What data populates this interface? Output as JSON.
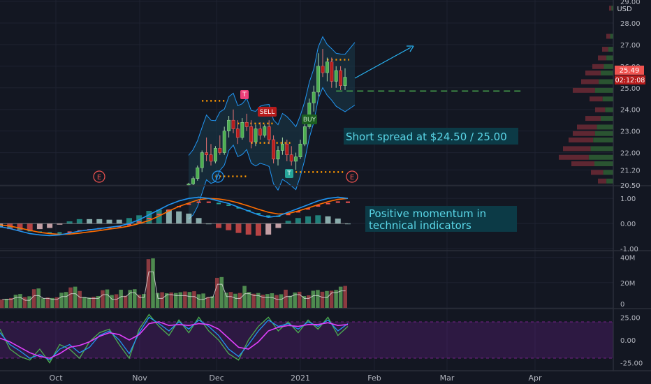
{
  "chart_data": {
    "type": "candlestick",
    "currency": "USD",
    "x_labels": [
      "Oct",
      "Nov",
      "Dec",
      "2021",
      "Feb",
      "Mar",
      "Apr"
    ],
    "price_panel": {
      "ylim": [
        20.5,
        29.0
      ],
      "ticks": [
        "29.00",
        "28.00",
        "27.00",
        "26.00",
        "25.00",
        "24.00",
        "23.00",
        "22.00",
        "21.20",
        "20.50"
      ],
      "last_price": "25.49",
      "countdown": "02:12:08",
      "support_level": 24.85,
      "resistance_levels": [
        24.85,
        26.3
      ],
      "level_lines": [
        24.4,
        23.35,
        22.45,
        20.9,
        21.1,
        26.3
      ],
      "series_candles": [
        [
          20.5,
          20.6,
          20.45,
          20.55
        ],
        [
          20.55,
          20.9,
          20.5,
          20.8
        ],
        [
          20.8,
          21.4,
          20.7,
          21.3
        ],
        [
          21.3,
          22.1,
          21.1,
          22.0
        ],
        [
          22.0,
          22.7,
          21.6,
          21.9
        ],
        [
          21.9,
          22.4,
          21.4,
          21.6
        ],
        [
          21.6,
          22.3,
          21.5,
          22.2
        ],
        [
          22.2,
          22.8,
          21.9,
          22.0
        ],
        [
          22.0,
          23.2,
          21.9,
          23.0
        ],
        [
          23.0,
          23.7,
          22.7,
          23.5
        ],
        [
          23.5,
          24.0,
          22.9,
          23.1
        ],
        [
          23.1,
          23.5,
          22.4,
          22.7
        ],
        [
          22.7,
          23.6,
          22.6,
          23.4
        ],
        [
          23.4,
          23.8,
          23.0,
          23.2
        ],
        [
          23.2,
          23.5,
          22.2,
          22.5
        ],
        [
          22.5,
          23.3,
          22.3,
          23.1
        ],
        [
          23.1,
          23.4,
          22.6,
          22.8
        ],
        [
          22.8,
          23.3,
          22.7,
          23.2
        ],
        [
          23.2,
          23.5,
          22.4,
          22.6
        ],
        [
          22.6,
          22.8,
          21.5,
          21.7
        ],
        [
          21.7,
          22.3,
          21.4,
          22.1
        ],
        [
          22.1,
          22.7,
          21.9,
          22.4
        ],
        [
          22.4,
          22.6,
          21.6,
          21.9
        ],
        [
          21.9,
          22.3,
          21.4,
          21.6
        ],
        [
          21.6,
          22.0,
          21.2,
          21.8
        ],
        [
          21.8,
          22.6,
          21.7,
          22.4
        ],
        [
          22.4,
          23.4,
          22.3,
          23.2
        ],
        [
          23.2,
          24.5,
          23.1,
          24.3
        ],
        [
          24.3,
          25.1,
          23.9,
          24.8
        ],
        [
          24.8,
          26.6,
          24.6,
          26.0
        ],
        [
          26.0,
          26.8,
          25.5,
          25.7
        ],
        [
          25.7,
          26.4,
          25.3,
          26.2
        ],
        [
          26.2,
          26.4,
          25.0,
          25.3
        ],
        [
          25.3,
          26.0,
          25.0,
          25.8
        ],
        [
          25.8,
          26.0,
          24.9,
          25.1
        ],
        [
          25.1,
          25.9,
          24.9,
          25.49
        ]
      ],
      "annotation": "Short spread at $24.50 / 25.00",
      "signals": [
        {
          "label": "SELL",
          "kind": "sell"
        },
        {
          "label": "BUY",
          "kind": "buy"
        },
        {
          "label": "T",
          "kind": "tag-red"
        },
        {
          "label": "T",
          "kind": "tag-green"
        },
        {
          "label": "D",
          "kind": "dividend"
        },
        {
          "label": "E",
          "kind": "earnings"
        },
        {
          "label": "E",
          "kind": "earnings"
        }
      ]
    },
    "macd_panel": {
      "ticks": [
        "1.00",
        "0.00",
        "-1.00"
      ],
      "ylim": [
        -1.05,
        1.45
      ],
      "macd": [
        -0.12,
        -0.2,
        -0.3,
        -0.4,
        -0.45,
        -0.48,
        -0.45,
        -0.38,
        -0.3,
        -0.25,
        -0.2,
        -0.15,
        -0.1,
        0.0,
        0.15,
        0.35,
        0.55,
        0.75,
        0.9,
        1.0,
        1.05,
        1.0,
        0.9,
        0.8,
        0.65,
        0.5,
        0.35,
        0.25,
        0.3,
        0.45,
        0.6,
        0.75,
        0.9,
        1.0,
        1.05,
        1.0
      ],
      "signal": [
        -0.05,
        -0.1,
        -0.18,
        -0.27,
        -0.35,
        -0.4,
        -0.43,
        -0.42,
        -0.38,
        -0.33,
        -0.28,
        -0.22,
        -0.17,
        -0.1,
        0.0,
        0.12,
        0.3,
        0.5,
        0.68,
        0.82,
        0.95,
        1.0,
        0.98,
        0.92,
        0.82,
        0.7,
        0.57,
        0.45,
        0.38,
        0.4,
        0.5,
        0.62,
        0.75,
        0.87,
        0.96,
        1.0
      ],
      "annotation": "Positive momentum in technical indicators"
    },
    "volume_panel": {
      "ticks": [
        "40M",
        "20M",
        "0"
      ],
      "ylim": [
        0,
        42
      ],
      "values": [
        9,
        11,
        8,
        13,
        10,
        9,
        12,
        15,
        11,
        10,
        14,
        9,
        12,
        16,
        11,
        38,
        10,
        14,
        13,
        12,
        9,
        11,
        25,
        12,
        10,
        15,
        13,
        11,
        9,
        12,
        14,
        10,
        13,
        11,
        16,
        18
      ]
    },
    "rsi_panel": {
      "ticks": [
        "25.00",
        "0.00",
        "-25.00"
      ],
      "ylim": [
        -33,
        33
      ],
      "band": [
        -20,
        20
      ],
      "line_a": [
        8,
        -5,
        -12,
        -20,
        -16,
        -22,
        -10,
        -5,
        -14,
        -8,
        5,
        10,
        0,
        -15,
        8,
        25,
        18,
        10,
        20,
        12,
        22,
        15,
        5,
        -10,
        -18,
        -5,
        10,
        22,
        15,
        18,
        12,
        20,
        15,
        22,
        10,
        18
      ],
      "line_b": [
        2,
        -2,
        -8,
        -14,
        -18,
        -20,
        -15,
        -8,
        -6,
        -2,
        4,
        8,
        6,
        0,
        6,
        18,
        20,
        16,
        17,
        16,
        18,
        17,
        12,
        2,
        -8,
        -10,
        -2,
        10,
        14,
        16,
        15,
        17,
        17,
        19,
        16,
        17
      ],
      "line_c": [
        12,
        -10,
        -18,
        -22,
        -10,
        -25,
        -5,
        -10,
        -20,
        -2,
        8,
        12,
        -5,
        -20,
        12,
        28,
        15,
        5,
        22,
        8,
        25,
        10,
        0,
        -15,
        -22,
        0,
        15,
        25,
        10,
        20,
        8,
        22,
        12,
        25,
        5,
        15
      ]
    }
  },
  "colors": {
    "bg": "#131722",
    "grid": "#1e2230",
    "axis_text": "#b2b5be",
    "up": "#26a69a",
    "down": "#ef5350",
    "up_candle": "#4caf50",
    "down_candle": "#b71c1c",
    "bb": "#2196f3",
    "support": "#4caf50",
    "level": "#ff9800",
    "annot_box": "#0c3a46",
    "annot_text": "#5ad7e8",
    "macd": "#2196f3",
    "signal": "#ff6d00",
    "rsi_a": "#2196f3",
    "rsi_b": "#e040fb",
    "rsi_c": "#4caf50",
    "price_badge": "#ef5350"
  }
}
